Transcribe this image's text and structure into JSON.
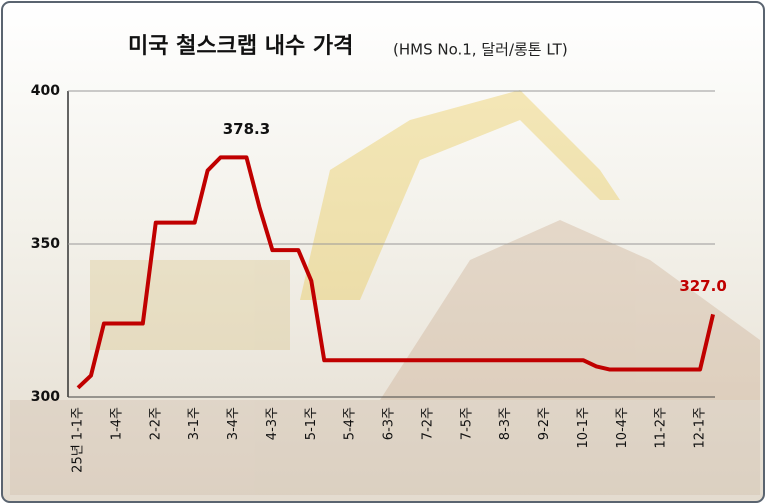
{
  "chart_data": {
    "type": "line",
    "title": "미국 철스크랩 내수 가격",
    "subtitle": "(HMS No.1, 달러/롱톤 LT)",
    "categories": [
      "25년 1-1주",
      null,
      null,
      "1-4주",
      null,
      null,
      "2-2주",
      null,
      null,
      "3-1주",
      null,
      null,
      "3-4주",
      null,
      null,
      "4-3주",
      null,
      null,
      "5-1주",
      null,
      null,
      "5-4주",
      null,
      null,
      "6-3주",
      null,
      null,
      "7-2주",
      null,
      null,
      "7-5주",
      null,
      null,
      "8-3주",
      null,
      null,
      "9-2주",
      null,
      null,
      "10-1주",
      null,
      null,
      "10-4주",
      null,
      null,
      "11-2주",
      null,
      null,
      "12-1주",
      null
    ],
    "series": [
      {
        "name": "철스크랩 내수 가격",
        "color": "#c00000",
        "values": [
          303,
          307,
          324,
          324,
          324,
          324,
          357,
          357,
          357,
          357,
          374,
          378.3,
          378.3,
          378.3,
          362,
          348,
          348,
          348,
          338,
          312,
          312,
          312,
          312,
          312,
          312,
          312,
          312,
          312,
          312,
          312,
          312,
          312,
          312,
          312,
          312,
          312,
          312,
          312,
          312,
          312,
          310,
          309,
          309,
          309,
          309,
          309,
          309,
          309,
          309,
          327
        ],
        "value_labels": [
          null,
          null,
          null,
          null,
          null,
          null,
          null,
          null,
          null,
          null,
          null,
          null,
          null,
          "378.3",
          null,
          null,
          null,
          null,
          null,
          null,
          null,
          null,
          null,
          null,
          null,
          null,
          null,
          null,
          null,
          null,
          null,
          null,
          null,
          null,
          null,
          null,
          null,
          null,
          null,
          null,
          null,
          null,
          null,
          null,
          null,
          null,
          null,
          null,
          null,
          "327.0"
        ]
      }
    ],
    "ylim": [
      300,
      400
    ],
    "yticks": [
      300,
      350,
      400
    ],
    "grid": true
  }
}
